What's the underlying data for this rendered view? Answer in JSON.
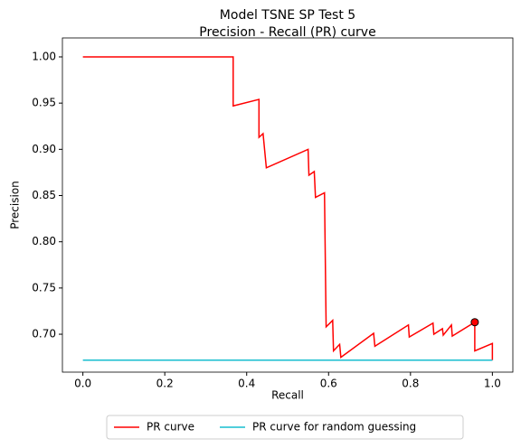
{
  "chart_data": {
    "type": "line",
    "title": "Model TSNE SP Test 5",
    "subtitle": "Precision - Recall (PR) curve",
    "x_label": "Recall",
    "y_label": "Precision",
    "xlim": [
      -0.05,
      1.05
    ],
    "ylim": [
      0.659,
      1.0205
    ],
    "xticks": [
      {
        "value": 0,
        "label": "0.0"
      },
      0.2,
      0.4,
      0.6,
      0.8,
      {
        "value": 1,
        "label": "1.0"
      }
    ],
    "yticks": [
      {
        "value": 0.7,
        "label": "0.70"
      },
      0.75,
      {
        "value": 0.8,
        "label": "0.80"
      },
      0.85,
      {
        "value": 0.9,
        "label": "0.90"
      },
      0.95,
      {
        "value": 1,
        "label": "1.00"
      }
    ],
    "legend": "lower center outside",
    "series": [
      {
        "name": "PR curve",
        "color": "#ff0000",
        "x": [
          0,
          0.367,
          0.367,
          0.43,
          0.43,
          0.44,
          0.448,
          0.55,
          0.552,
          0.565,
          0.568,
          0.59,
          0.594,
          0.61,
          0.612,
          0.627,
          0.63,
          0.71,
          0.713,
          0.795,
          0.797,
          0.855,
          0.857,
          0.878,
          0.88,
          0.9,
          0.902,
          0.957,
          0.957,
          1.0,
          1.0
        ],
        "values": [
          1.0,
          1.0,
          0.947,
          0.954,
          0.913,
          0.917,
          0.88,
          0.9,
          0.872,
          0.876,
          0.848,
          0.853,
          0.708,
          0.715,
          0.682,
          0.689,
          0.675,
          0.701,
          0.687,
          0.71,
          0.697,
          0.712,
          0.7,
          0.706,
          0.699,
          0.71,
          0.698,
          0.713,
          0.682,
          0.69,
          0.672
        ]
      },
      {
        "name": "PR curve for random guessing",
        "color": "#17becf",
        "x": [
          0,
          1
        ],
        "values": [
          0.672,
          0.672
        ]
      }
    ],
    "point": {
      "x": 0.957,
      "y": 0.713,
      "color": "#ff0000",
      "edge": "#000000"
    }
  }
}
